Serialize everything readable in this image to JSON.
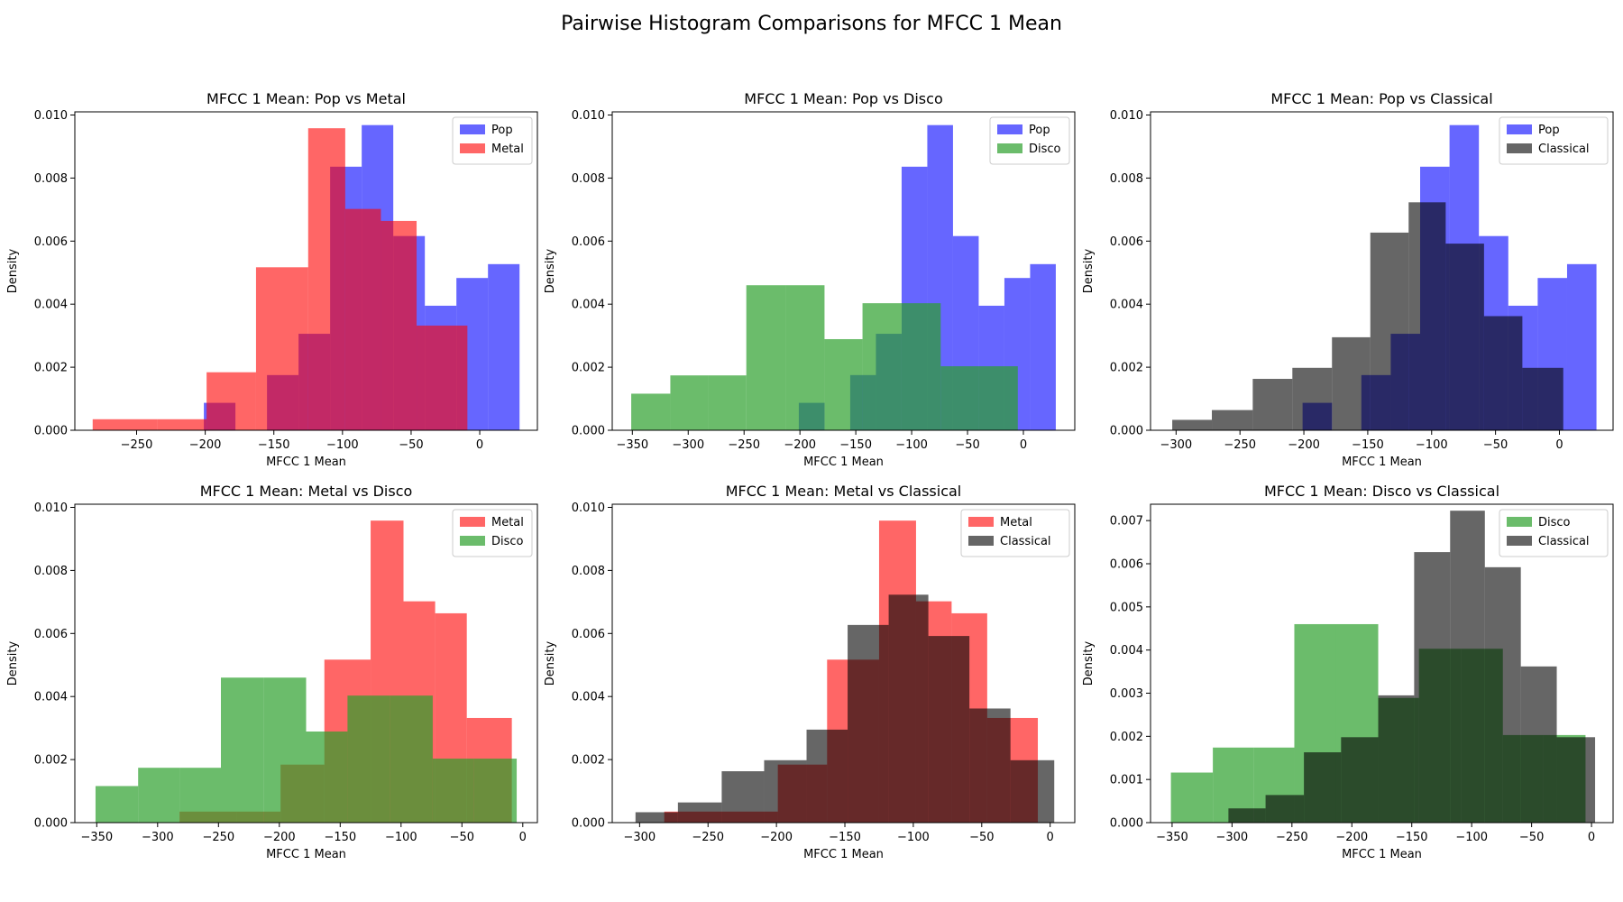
{
  "figure_title": "Pairwise Histogram Comparisons for MFCC 1 Mean",
  "colors": {
    "Pop": "#0000ff",
    "Metal": "#ff0000",
    "Disco": "#2ca02c",
    "Classical": "#000000"
  },
  "chart_data": [
    {
      "type": "histogram",
      "title": "MFCC 1 Mean: Pop vs Metal",
      "xlabel": "MFCC 1 Mean",
      "ylabel": "Density",
      "xlim": [
        -295,
        42
      ],
      "ylim": [
        0,
        0.0101
      ],
      "xticks": [
        -250,
        -200,
        -150,
        -100,
        -50,
        0
      ],
      "xtick_labels": [
        "−250",
        "−200",
        "−150",
        "−100",
        "−50",
        "0"
      ],
      "yticks": [
        0,
        0.002,
        0.004,
        0.006,
        0.008,
        0.01
      ],
      "ytick_labels": [
        "0.000",
        "0.002",
        "0.004",
        "0.006",
        "0.008",
        "0.010"
      ],
      "legend_position": "upper right",
      "series": [
        {
          "name": "Pop",
          "color": "#0000ff",
          "alpha": 0.6,
          "edges": [
            -201,
            -178,
            -155,
            -132,
            -109,
            -86,
            -63,
            -40,
            -17,
            6,
            29
          ],
          "densities": [
            0.00087,
            0.0,
            0.00175,
            0.00306,
            0.00836,
            0.00968,
            0.00616,
            0.00395,
            0.00483,
            0.00527
          ]
        },
        {
          "name": "Metal",
          "color": "#ff0000",
          "alpha": 0.6,
          "edges": [
            -282,
            -235,
            -199,
            -163,
            -125,
            -98,
            -72,
            -46,
            -9
          ],
          "densities": [
            0.00035,
            0.00035,
            0.00184,
            0.00517,
            0.00958,
            0.00702,
            0.00664,
            0.00332
          ]
        }
      ]
    },
    {
      "type": "histogram",
      "title": "MFCC 1 Mean: Pop vs Disco",
      "xlabel": "MFCC 1 Mean",
      "ylabel": "Density",
      "xlim": [
        -368,
        46
      ],
      "ylim": [
        0,
        0.0101
      ],
      "xticks": [
        -350,
        -300,
        -250,
        -200,
        -150,
        -100,
        -50,
        0
      ],
      "xtick_labels": [
        "−350",
        "−300",
        "−250",
        "−200",
        "−150",
        "−100",
        "−50",
        "0"
      ],
      "yticks": [
        0,
        0.002,
        0.004,
        0.006,
        0.008,
        0.01
      ],
      "ytick_labels": [
        "0.000",
        "0.002",
        "0.004",
        "0.006",
        "0.008",
        "0.010"
      ],
      "legend_position": "upper right",
      "series": [
        {
          "name": "Pop",
          "color": "#0000ff",
          "alpha": 0.6,
          "edges": [
            -201,
            -178,
            -155,
            -132,
            -109,
            -86,
            -63,
            -40,
            -17,
            6,
            29
          ],
          "densities": [
            0.00087,
            0.0,
            0.00175,
            0.00306,
            0.00836,
            0.00968,
            0.00616,
            0.00395,
            0.00483,
            0.00527
          ]
        },
        {
          "name": "Disco",
          "color": "#2ca02c",
          "alpha": 0.7,
          "edges": [
            -351,
            -316,
            -282,
            -248,
            -213,
            -178,
            -144,
            -109,
            -74,
            -40,
            -5
          ],
          "densities": [
            0.00116,
            0.00174,
            0.00174,
            0.0046,
            0.0046,
            0.00289,
            0.00403,
            0.00403,
            0.00203,
            0.00203
          ]
        }
      ]
    },
    {
      "type": "histogram",
      "title": "MFCC 1 Mean: Pop vs Classical",
      "xlabel": "MFCC 1 Mean",
      "ylabel": "Density",
      "xlim": [
        -320,
        42
      ],
      "ylim": [
        0,
        0.0101
      ],
      "xticks": [
        -300,
        -250,
        -200,
        -150,
        -100,
        -50,
        0
      ],
      "xtick_labels": [
        "−300",
        "−250",
        "−200",
        "−150",
        "−100",
        "−50",
        "0"
      ],
      "yticks": [
        0,
        0.002,
        0.004,
        0.006,
        0.008,
        0.01
      ],
      "ytick_labels": [
        "0.000",
        "0.002",
        "0.004",
        "0.006",
        "0.008",
        "0.010"
      ],
      "legend_position": "upper right",
      "series": [
        {
          "name": "Pop",
          "color": "#0000ff",
          "alpha": 0.6,
          "edges": [
            -201,
            -178,
            -155,
            -132,
            -109,
            -86,
            -63,
            -40,
            -17,
            6,
            29
          ],
          "densities": [
            0.00087,
            0.0,
            0.00175,
            0.00306,
            0.00836,
            0.00968,
            0.00616,
            0.00395,
            0.00483,
            0.00527
          ]
        },
        {
          "name": "Classical",
          "color": "#000000",
          "alpha": 0.6,
          "edges": [
            -303,
            -272,
            -240,
            -209,
            -178,
            -148,
            -118,
            -89,
            -59,
            -29,
            3
          ],
          "densities": [
            0.00033,
            0.00064,
            0.00163,
            0.00198,
            0.00295,
            0.00627,
            0.00723,
            0.00592,
            0.00362,
            0.00198
          ]
        }
      ]
    },
    {
      "type": "histogram",
      "title": "MFCC 1 Mean: Metal vs Disco",
      "xlabel": "MFCC 1 Mean",
      "ylabel": "Density",
      "xlim": [
        -368,
        12
      ],
      "ylim": [
        0,
        0.0101
      ],
      "xticks": [
        -350,
        -300,
        -250,
        -200,
        -150,
        -100,
        -50,
        0
      ],
      "xtick_labels": [
        "−350",
        "−300",
        "−250",
        "−200",
        "−150",
        "−100",
        "−50",
        "0"
      ],
      "yticks": [
        0,
        0.002,
        0.004,
        0.006,
        0.008,
        0.01
      ],
      "ytick_labels": [
        "0.000",
        "0.002",
        "0.004",
        "0.006",
        "0.008",
        "0.010"
      ],
      "legend_position": "upper right",
      "series": [
        {
          "name": "Metal",
          "color": "#ff0000",
          "alpha": 0.6,
          "edges": [
            -282,
            -235,
            -199,
            -163,
            -125,
            -98,
            -72,
            -46,
            -9
          ],
          "densities": [
            0.00035,
            0.00035,
            0.00184,
            0.00517,
            0.00958,
            0.00702,
            0.00664,
            0.00332
          ]
        },
        {
          "name": "Disco",
          "color": "#2ca02c",
          "alpha": 0.7,
          "edges": [
            -351,
            -316,
            -282,
            -248,
            -213,
            -178,
            -144,
            -109,
            -74,
            -40,
            -5
          ],
          "densities": [
            0.00116,
            0.00174,
            0.00174,
            0.0046,
            0.0046,
            0.00289,
            0.00403,
            0.00403,
            0.00203,
            0.00203
          ]
        }
      ]
    },
    {
      "type": "histogram",
      "title": "MFCC 1 Mean: Metal vs Classical",
      "xlabel": "MFCC 1 Mean",
      "ylabel": "Density",
      "xlim": [
        -320,
        18
      ],
      "ylim": [
        0,
        0.0101
      ],
      "xticks": [
        -300,
        -250,
        -200,
        -150,
        -100,
        -50,
        0
      ],
      "xtick_labels": [
        "−300",
        "−250",
        "−200",
        "−150",
        "−100",
        "−50",
        "0"
      ],
      "yticks": [
        0,
        0.002,
        0.004,
        0.006,
        0.008,
        0.01
      ],
      "ytick_labels": [
        "0.000",
        "0.002",
        "0.004",
        "0.006",
        "0.008",
        "0.010"
      ],
      "legend_position": "upper right",
      "series": [
        {
          "name": "Metal",
          "color": "#ff0000",
          "alpha": 0.6,
          "edges": [
            -282,
            -235,
            -199,
            -163,
            -125,
            -98,
            -72,
            -46,
            -9
          ],
          "densities": [
            0.00035,
            0.00035,
            0.00184,
            0.00517,
            0.00958,
            0.00702,
            0.00664,
            0.00332
          ]
        },
        {
          "name": "Classical",
          "color": "#000000",
          "alpha": 0.6,
          "edges": [
            -303,
            -272,
            -240,
            -209,
            -178,
            -148,
            -118,
            -89,
            -59,
            -29,
            3
          ],
          "densities": [
            0.00033,
            0.00064,
            0.00163,
            0.00198,
            0.00295,
            0.00627,
            0.00723,
            0.00592,
            0.00362,
            0.00198
          ]
        }
      ]
    },
    {
      "type": "histogram",
      "title": "MFCC 1 Mean: Disco vs Classical",
      "xlabel": "MFCC 1 Mean",
      "ylabel": "Density",
      "xlim": [
        -368,
        18
      ],
      "ylim": [
        0,
        0.00738
      ],
      "xticks": [
        -350,
        -300,
        -250,
        -200,
        -150,
        -100,
        -50,
        0
      ],
      "xtick_labels": [
        "−350",
        "−300",
        "−250",
        "−200",
        "−150",
        "−100",
        "−50",
        "0"
      ],
      "yticks": [
        0,
        0.001,
        0.002,
        0.003,
        0.004,
        0.005,
        0.006,
        0.007
      ],
      "ytick_labels": [
        "0.000",
        "0.001",
        "0.002",
        "0.003",
        "0.004",
        "0.005",
        "0.006",
        "0.007"
      ],
      "legend_position": "upper right",
      "series": [
        {
          "name": "Disco",
          "color": "#2ca02c",
          "alpha": 0.7,
          "edges": [
            -351,
            -316,
            -282,
            -248,
            -213,
            -178,
            -144,
            -109,
            -74,
            -40,
            -5
          ],
          "densities": [
            0.00116,
            0.00174,
            0.00174,
            0.0046,
            0.0046,
            0.00289,
            0.00403,
            0.00403,
            0.00203,
            0.00203
          ]
        },
        {
          "name": "Classical",
          "color": "#000000",
          "alpha": 0.6,
          "edges": [
            -303,
            -272,
            -240,
            -209,
            -178,
            -148,
            -118,
            -89,
            -59,
            -29,
            3
          ],
          "densities": [
            0.00033,
            0.00064,
            0.00163,
            0.00198,
            0.00295,
            0.00627,
            0.00723,
            0.00592,
            0.00362,
            0.00198
          ]
        }
      ]
    }
  ]
}
